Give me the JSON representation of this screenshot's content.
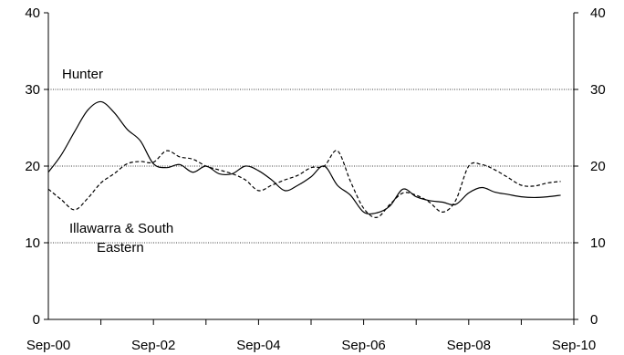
{
  "chart_data": {
    "type": "line",
    "title": "",
    "xlabel": "",
    "ylabel": "",
    "x_tick_labels": [
      "Sep-00",
      "Sep-02",
      "Sep-04",
      "Sep-06",
      "Sep-08",
      "Sep-10"
    ],
    "x_tick_dates": [
      "2000-09",
      "2002-09",
      "2004-09",
      "2006-09",
      "2008-09",
      "2010-09"
    ],
    "ylim": [
      0,
      40
    ],
    "y_ticks": [
      0,
      10,
      20,
      30,
      40
    ],
    "y_tick_labels": [
      "0",
      "10",
      "20",
      "30",
      "40"
    ],
    "grid": "horizontal dotted at 10, 20, 30",
    "legend": "none (series labelled by annotations inside plot)",
    "annotations": {
      "hunter": "Hunter",
      "illawarra_line1": "Illawarra & South",
      "illawarra_line2": "Eastern"
    },
    "series": [
      {
        "name": "Hunter",
        "style": "solid",
        "color": "#000000",
        "points": [
          [
            "2000-09",
            19.2
          ],
          [
            "2000-12",
            21.5
          ],
          [
            "2001-03",
            24.5
          ],
          [
            "2001-06",
            27.3
          ],
          [
            "2001-09",
            28.4
          ],
          [
            "2001-12",
            27.0
          ],
          [
            "2002-03",
            24.8
          ],
          [
            "2002-06",
            23.3
          ],
          [
            "2002-09",
            20.3
          ],
          [
            "2002-12",
            19.8
          ],
          [
            "2003-03",
            20.2
          ],
          [
            "2003-06",
            19.2
          ],
          [
            "2003-09",
            20.0
          ],
          [
            "2003-12",
            19.0
          ],
          [
            "2004-03",
            19.0
          ],
          [
            "2004-06",
            20.0
          ],
          [
            "2004-09",
            19.4
          ],
          [
            "2004-12",
            18.2
          ],
          [
            "2005-03",
            16.8
          ],
          [
            "2005-06",
            17.5
          ],
          [
            "2005-09",
            18.6
          ],
          [
            "2005-12",
            20.0
          ],
          [
            "2006-03",
            17.5
          ],
          [
            "2006-06",
            16.2
          ],
          [
            "2006-09",
            14.0
          ],
          [
            "2006-12",
            13.9
          ],
          [
            "2007-03",
            14.8
          ],
          [
            "2007-06",
            17.0
          ],
          [
            "2007-09",
            16.0
          ],
          [
            "2007-12",
            15.5
          ],
          [
            "2008-03",
            15.3
          ],
          [
            "2008-06",
            15.0
          ],
          [
            "2008-09",
            16.5
          ],
          [
            "2008-12",
            17.2
          ],
          [
            "2009-03",
            16.6
          ],
          [
            "2009-06",
            16.3
          ],
          [
            "2009-09",
            16.0
          ],
          [
            "2009-12",
            15.9
          ],
          [
            "2010-03",
            16.0
          ],
          [
            "2010-06",
            16.2
          ]
        ]
      },
      {
        "name": "Illawarra & South Eastern",
        "style": "dashed",
        "color": "#000000",
        "points": [
          [
            "2000-09",
            17.0
          ],
          [
            "2000-12",
            15.6
          ],
          [
            "2001-03",
            14.3
          ],
          [
            "2001-06",
            15.8
          ],
          [
            "2001-09",
            17.8
          ],
          [
            "2001-12",
            19.0
          ],
          [
            "2002-03",
            20.3
          ],
          [
            "2002-06",
            20.6
          ],
          [
            "2002-09",
            20.5
          ],
          [
            "2002-12",
            22.0
          ],
          [
            "2003-03",
            21.2
          ],
          [
            "2003-06",
            20.9
          ],
          [
            "2003-09",
            20.0
          ],
          [
            "2003-12",
            19.5
          ],
          [
            "2004-03",
            19.0
          ],
          [
            "2004-06",
            18.2
          ],
          [
            "2004-09",
            16.8
          ],
          [
            "2004-12",
            17.5
          ],
          [
            "2005-03",
            18.2
          ],
          [
            "2005-06",
            18.8
          ],
          [
            "2005-09",
            19.8
          ],
          [
            "2005-12",
            20.0
          ],
          [
            "2006-03",
            22.0
          ],
          [
            "2006-06",
            18.0
          ],
          [
            "2006-09",
            14.5
          ],
          [
            "2006-12",
            13.3
          ],
          [
            "2007-03",
            15.0
          ],
          [
            "2007-06",
            16.5
          ],
          [
            "2007-09",
            16.2
          ],
          [
            "2007-12",
            15.3
          ],
          [
            "2008-03",
            14.0
          ],
          [
            "2008-06",
            15.5
          ],
          [
            "2008-09",
            20.0
          ],
          [
            "2008-12",
            20.2
          ],
          [
            "2009-03",
            19.5
          ],
          [
            "2009-06",
            18.5
          ],
          [
            "2009-09",
            17.5
          ],
          [
            "2009-12",
            17.4
          ],
          [
            "2010-03",
            17.8
          ],
          [
            "2010-06",
            18.0
          ]
        ]
      }
    ]
  }
}
